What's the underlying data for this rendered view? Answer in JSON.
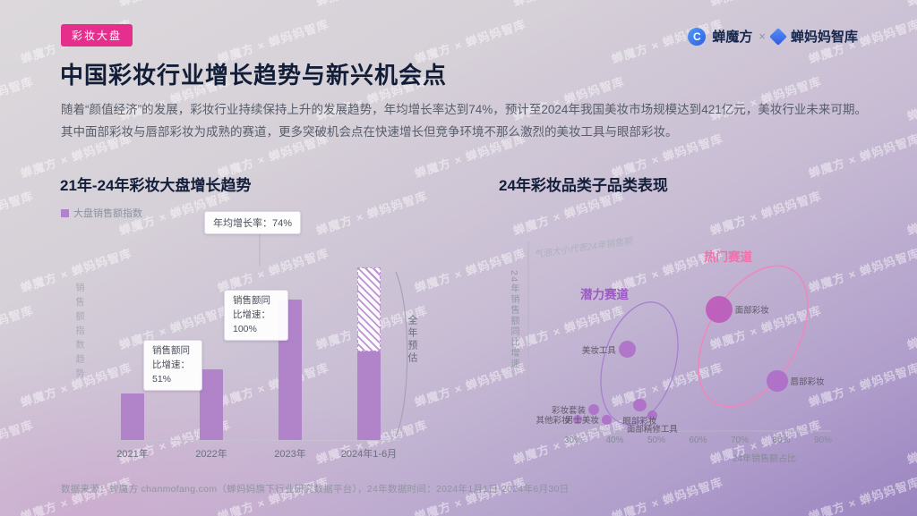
{
  "page": {
    "badge": "彩妆大盘",
    "title": "中国彩妆行业增长趋势与新兴机会点",
    "paragraph": "随着“颜值经济”的发展，彩妆行业持续保持上升的发展趋势，年均增长率达到74%，预计至2024年我国美妆市场规模达到421亿元，美妆行业未来可期。其中面部彩妆与唇部彩妆为成熟的赛道，更多突破机会点在快速增长但竞争环境不那么激烈的美妆工具与眼部彩妆。",
    "footer": "数据来源：蝉魔方 chanmofang.com（蝉妈妈旗下行业研究数据平台），24年数据时间：2024年1月1日-2024年6月30日"
  },
  "brand": {
    "logo_left": "蝉魔方",
    "separator": "×",
    "logo_right": "蝉妈妈智库",
    "logo_glyph": "C",
    "watermark_tile": "蝉魔方 × 蝉妈妈智库"
  },
  "colors": {
    "badge_bg": "#e62f8d",
    "bar": "#b184ca",
    "forecast_stripe": "#bd93d3",
    "bubble": "#ac65c6",
    "potential_track": "#9c59c4",
    "hot_track": "#f06fac",
    "title_text": "#121e38"
  },
  "chart_data": [
    {
      "type": "bar",
      "title": "21年-24年彩妆大盘增长趋势",
      "legend": "大盘销售额指数",
      "ylabel": "销售额指数趋势",
      "categories": [
        "2021年",
        "2022年",
        "2023年",
        "2024年1-6月"
      ],
      "values": [
        1.0,
        1.51,
        3.02,
        1.9
      ],
      "forecast": {
        "full_year_estimate": 3.7,
        "label": "全年预估"
      },
      "annotations": {
        "avg_growth": "年均增长率：74%",
        "yoy_2022": "销售额同比增速：51%",
        "yoy_2023": "销售额同比增速：100%"
      }
    },
    {
      "type": "scatter",
      "title": "24年彩妆品类子品类表现",
      "xlabel": "24年销售额占比",
      "ylabel": "24年销售额同比增速",
      "note": "气泡大小代表24年销售额",
      "x_ticks": [
        "30%",
        "40%",
        "50%",
        "60%",
        "70%",
        "80%",
        "90%"
      ],
      "groups": [
        {
          "name": "潜力赛道",
          "color": "#9c59c4"
        },
        {
          "name": "热门赛道",
          "color": "#f06fac"
        }
      ],
      "points": [
        {
          "label": "面部彩妆",
          "share": 65,
          "growth": 80,
          "size": 5,
          "highlight": true
        },
        {
          "label": "唇部彩妆",
          "share": 79,
          "growth": 30,
          "size": 3.5
        },
        {
          "label": "美妆工具",
          "share": 43,
          "growth": 52,
          "size": 2.5
        },
        {
          "label": "眼部彩妆",
          "share": 46,
          "growth": 13,
          "size": 1.5
        },
        {
          "label": "彩妆套装",
          "share": 35,
          "growth": 10,
          "size": 1
        },
        {
          "label": "面部精修工具",
          "share": 49,
          "growth": 6,
          "size": 0.8
        },
        {
          "label": "男士美妆",
          "share": 38,
          "growth": 3,
          "size": 0.6
        },
        {
          "label": "其他彩妆",
          "share": 31,
          "growth": 3,
          "size": 0.5
        }
      ]
    }
  ]
}
